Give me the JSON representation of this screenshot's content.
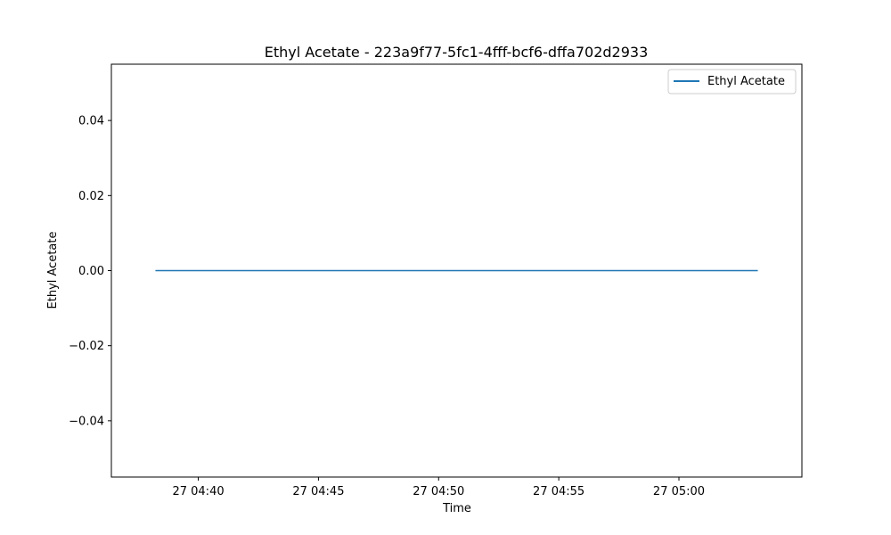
{
  "chart_data": {
    "type": "line",
    "title": "Ethyl Acetate - 223a9f77-5fc1-4fff-bcf6-dffa702d2933",
    "xlabel": "Time",
    "ylabel": "Ethyl Acetate",
    "x_start": "27 04:38:13",
    "x_end": "27 05:03:17",
    "xlim": [
      "27 04:36:23",
      "27 05:05:07"
    ],
    "ylim": [
      -0.055,
      0.055
    ],
    "x_ticks": [
      "27 04:40",
      "27 04:45",
      "27 04:50",
      "27 04:55",
      "27 05:00"
    ],
    "y_ticks": [
      "0.04",
      "0.02",
      "0.00",
      "−0.02",
      "−0.04"
    ],
    "y_tick_values": [
      0.04,
      0.02,
      0.0,
      -0.02,
      -0.04
    ],
    "series": [
      {
        "name": "Ethyl Acetate",
        "color": "#1f77b4",
        "values": [
          0.0,
          0.0
        ]
      }
    ],
    "legend": "top-right",
    "grid": false
  }
}
